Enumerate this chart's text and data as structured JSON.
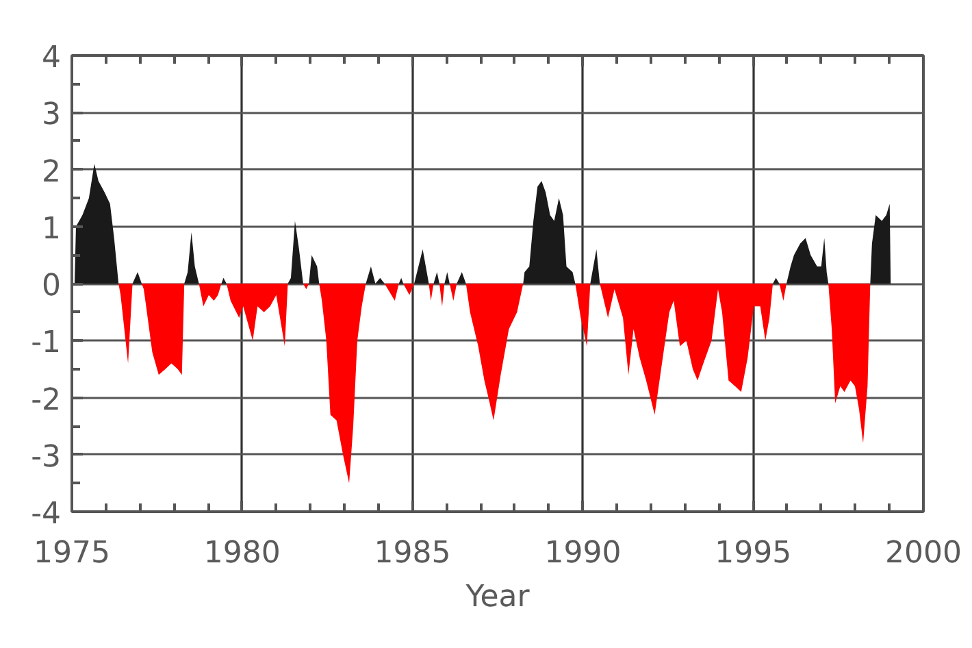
{
  "chart_data": {
    "type": "area",
    "xlabel": "Year",
    "xlim": [
      1975,
      2000
    ],
    "ylim": [
      -4,
      4
    ],
    "xticks": [
      1975,
      {
        "value": 1976,
        "label": null
      },
      {
        "value": 1977,
        "label": null
      },
      {
        "value": 1978,
        "label": null
      },
      {
        "value": 1979,
        "label": null
      },
      1980,
      {
        "value": 1981,
        "label": null
      },
      {
        "value": 1982,
        "label": null
      },
      {
        "value": 1983,
        "label": null
      },
      {
        "value": 1984,
        "label": null
      },
      1985,
      {
        "value": 1986,
        "label": null
      },
      {
        "value": 1987,
        "label": null
      },
      {
        "value": 1988,
        "label": null
      },
      {
        "value": 1989,
        "label": null
      },
      1990,
      {
        "value": 1991,
        "label": null
      },
      {
        "value": 1992,
        "label": null
      },
      {
        "value": 1993,
        "label": null
      },
      {
        "value": 1994,
        "label": null
      },
      1995,
      {
        "value": 1996,
        "label": null
      },
      {
        "value": 1997,
        "label": null
      },
      {
        "value": 1998,
        "label": null
      },
      {
        "value": 1999,
        "label": null
      },
      2000
    ],
    "yticks": [
      -4,
      {
        "value": -3.5,
        "label": null
      },
      -3,
      {
        "value": -2.5,
        "label": null
      },
      -2,
      {
        "value": -1.5,
        "label": null
      },
      -1,
      {
        "value": -0.5,
        "label": null
      },
      0,
      {
        "value": 0.5,
        "label": null
      },
      1,
      {
        "value": 1.5,
        "label": null
      },
      2,
      {
        "value": 2.5,
        "label": null
      },
      3,
      {
        "value": 3.5,
        "label": null
      },
      4
    ],
    "grid": true,
    "x": [
      1975.08,
      1975.12,
      1975.31,
      1975.5,
      1975.66,
      1975.78,
      1975.96,
      1976.12,
      1976.24,
      1976.37,
      1976.43,
      1976.65,
      1976.78,
      1976.93,
      1977.05,
      1977.11,
      1977.18,
      1977.36,
      1977.55,
      1977.74,
      1977.92,
      1978.11,
      1978.23,
      1978.3,
      1978.4,
      1978.51,
      1978.61,
      1978.73,
      1978.86,
      1979.02,
      1979.17,
      1979.29,
      1979.39,
      1979.45,
      1979.54,
      1979.66,
      1979.91,
      1980.03,
      1980.31,
      1980.45,
      1980.64,
      1980.82,
      1981.0,
      1981.25,
      1981.34,
      1981.43,
      1981.55,
      1981.67,
      1981.79,
      1981.88,
      1981.96,
      1982.04,
      1982.2,
      1982.26,
      1982.34,
      1982.47,
      1982.59,
      1982.77,
      1982.96,
      1983.14,
      1983.26,
      1983.38,
      1983.51,
      1983.63,
      1983.78,
      1983.91,
      1984.05,
      1984.18,
      1984.48,
      1984.6,
      1984.67,
      1984.73,
      1984.91,
      1985.05,
      1985.3,
      1985.48,
      1985.54,
      1985.62,
      1985.72,
      1985.79,
      1985.87,
      1985.94,
      1986.02,
      1986.09,
      1986.2,
      1986.3,
      1986.45,
      1986.57,
      1986.69,
      1986.93,
      1987.11,
      1987.23,
      1987.38,
      1987.59,
      1987.83,
      1988.07,
      1988.25,
      1988.29,
      1988.43,
      1988.55,
      1988.67,
      1988.79,
      1988.91,
      1989.04,
      1989.16,
      1989.3,
      1989.42,
      1989.52,
      1989.7,
      1989.78,
      1989.94,
      1990.12,
      1990.22,
      1990.4,
      1990.5,
      1990.74,
      1990.93,
      1991.18,
      1991.34,
      1991.49,
      1991.67,
      1991.86,
      1992.11,
      1992.3,
      1992.54,
      1992.67,
      1992.85,
      1993.04,
      1993.23,
      1993.37,
      1993.54,
      1993.78,
      1993.97,
      1994.09,
      1994.28,
      1994.47,
      1994.65,
      1994.84,
      1995.02,
      1995.21,
      1995.36,
      1995.48,
      1995.58,
      1995.67,
      1995.77,
      1995.89,
      1995.98,
      1996.1,
      1996.2,
      1996.38,
      1996.54,
      1996.69,
      1996.88,
      1997.0,
      1997.09,
      1997.16,
      1997.21,
      1997.31,
      1997.41,
      1997.56,
      1997.68,
      1997.86,
      1997.99,
      1998.11,
      1998.23,
      1998.36,
      1998.44,
      1998.49,
      1998.6,
      1998.78,
      1998.91,
      1999.01,
      1999.04
    ],
    "series": [
      {
        "color": "#1a1a1a",
        "values": [
          0,
          1.0,
          1.2,
          1.5,
          2.1,
          1.8,
          1.6,
          1.4,
          0.8,
          0,
          0,
          0,
          0,
          0.2,
          0,
          0,
          0,
          0,
          0,
          0,
          0,
          0,
          0,
          0,
          0.2,
          0.9,
          0.3,
          0,
          0,
          0,
          0,
          0,
          0,
          0.1,
          0,
          0,
          0,
          0,
          0,
          0,
          0,
          0,
          0,
          0,
          0,
          0.1,
          1.1,
          0.6,
          0,
          0,
          0,
          0.5,
          0.3,
          0,
          0,
          0,
          0,
          0,
          0,
          0,
          0,
          0,
          0,
          0,
          0.3,
          0,
          0.1,
          0,
          0,
          0,
          0.1,
          0,
          0,
          0,
          0.6,
          0,
          0,
          0,
          0.2,
          0,
          0,
          0,
          0.2,
          0,
          0,
          0,
          0.2,
          0,
          0,
          0,
          0,
          0,
          0,
          0,
          0,
          0,
          0,
          0.2,
          0.3,
          1.1,
          1.7,
          1.8,
          1.6,
          1.2,
          1.1,
          1.5,
          1.2,
          0.3,
          0.2,
          0,
          0,
          0,
          0,
          0.6,
          0,
          0,
          0,
          0,
          0,
          0,
          0,
          0,
          0,
          0,
          0,
          0,
          0,
          0,
          0,
          0,
          0,
          0,
          0,
          0,
          0,
          0,
          0,
          0,
          0,
          0,
          0,
          0,
          0,
          0.1,
          0,
          0,
          0,
          0.3,
          0.5,
          0.7,
          0.8,
          0.5,
          0.3,
          0.3,
          0.8,
          0.2,
          0,
          0,
          0,
          0,
          0,
          0,
          0,
          0,
          0,
          0,
          0,
          0.7,
          1.2,
          1.1,
          1.2,
          1.4,
          0
        ]
      },
      {
        "color": "#ff0000",
        "values": [
          0,
          0,
          0,
          0,
          0,
          0,
          0,
          0,
          0,
          0,
          -0.2,
          -1.4,
          0,
          0,
          0,
          -0.1,
          -0.4,
          -1.2,
          -1.6,
          -1.5,
          -1.4,
          -1.5,
          -1.6,
          0,
          0,
          0,
          0,
          0,
          -0.4,
          -0.2,
          -0.3,
          -0.2,
          0,
          0,
          0,
          -0.3,
          -0.6,
          -0.4,
          -1.0,
          -0.4,
          -0.5,
          -0.4,
          -0.2,
          -1.1,
          0,
          0,
          0,
          0,
          0,
          -0.1,
          0,
          0,
          0,
          0,
          -0.3,
          -1.0,
          -2.3,
          -2.4,
          -3.0,
          -3.5,
          -2.5,
          -1.0,
          -0.4,
          0,
          0,
          0,
          0,
          0,
          -0.3,
          0,
          0,
          0,
          -0.2,
          0,
          0,
          0,
          -0.3,
          0,
          0,
          0,
          -0.4,
          0,
          0,
          0,
          -0.3,
          0,
          0,
          0,
          -0.5,
          -1.1,
          -1.7,
          -2.0,
          -2.4,
          -1.6,
          -0.8,
          -0.5,
          0,
          0,
          0,
          0,
          0,
          0,
          0,
          0,
          0,
          0,
          0,
          0,
          0,
          0,
          -0.6,
          -1.1,
          0,
          0,
          0,
          -0.6,
          -0.1,
          -0.6,
          -1.6,
          -0.8,
          -1.3,
          -1.7,
          -2.3,
          -1.5,
          -0.5,
          -0.3,
          -1.1,
          -1.0,
          -1.5,
          -1.7,
          -1.4,
          -1.0,
          -0.1,
          -0.5,
          -1.7,
          -1.8,
          -1.9,
          -1.3,
          -0.4,
          -0.4,
          -1.0,
          -0.6,
          0,
          0,
          0,
          -0.3,
          0,
          0,
          0,
          0,
          0,
          0,
          0,
          0,
          0,
          0,
          0,
          -0.8,
          -2.1,
          -1.8,
          -1.9,
          -1.7,
          -1.8,
          -2.2,
          -2.8,
          -1.8,
          0,
          0,
          0,
          0,
          0,
          0,
          0
        ]
      }
    ]
  }
}
